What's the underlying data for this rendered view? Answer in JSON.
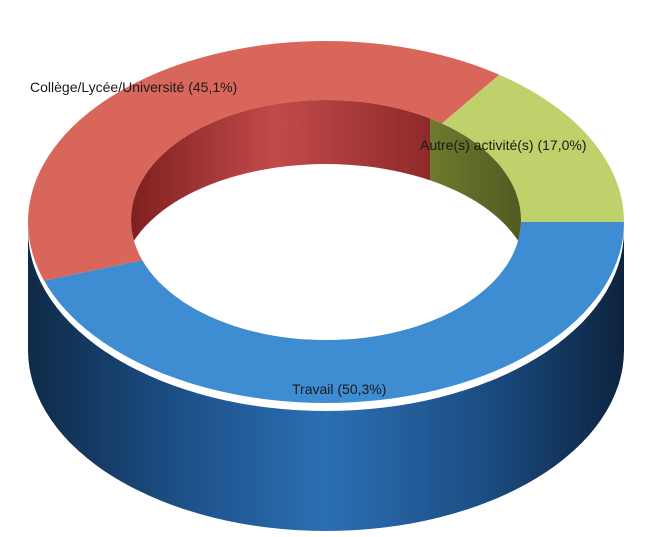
{
  "chart_data": {
    "type": "pie",
    "style": "3d-donut",
    "slices": [
      {
        "label": "Travail",
        "value": 50.3,
        "display": "Travail (50,3%)",
        "color": "#3e8dd3"
      },
      {
        "label": "Collège/Lycée/Université",
        "value": 45.1,
        "display": "Collège/Lycée/Université (45,1%)",
        "color": "#d9665a"
      },
      {
        "label": "Autre(s) activité(s)",
        "value": 17.0,
        "display": "Autre(s) activité(s) (17,0%)",
        "color": "#bfd16b"
      }
    ]
  }
}
